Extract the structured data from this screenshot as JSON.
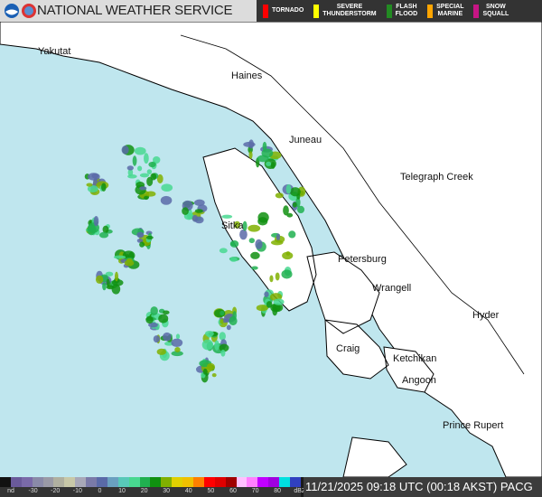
{
  "header": {
    "title": "NATIONAL WEATHER SERVICE",
    "logos": [
      "noaa-logo",
      "nws-logo"
    ]
  },
  "warnings_legend": [
    {
      "label": "TORNADO",
      "color": "#ff0000"
    },
    {
      "label": "SEVERE THUNDERSTORM",
      "color": "#ffff00"
    },
    {
      "label": "FLASH FLOOD",
      "color": "#228b22"
    },
    {
      "label": "SPECIAL MARINE",
      "color": "#ffa500"
    },
    {
      "label": "SNOW SQUALL",
      "color": "#c71585"
    }
  ],
  "map": {
    "colors": {
      "water": "#bfe6ee",
      "land": "#ffffff",
      "border": "#000000"
    },
    "places": [
      "Yakutat",
      "Haines",
      "Juneau",
      "Telegraph Creek",
      "Sitka",
      "Petersburg",
      "Wrangell",
      "Hyder",
      "Craig",
      "Ketchikan",
      "Angoon",
      "Prince Rupert"
    ]
  },
  "colorbar": {
    "unit": "dBZ",
    "ticks": [
      "nd",
      "-30",
      "-20",
      "-10",
      "0",
      "10",
      "20",
      "30",
      "40",
      "50",
      "60",
      "70",
      "80",
      "dBZ"
    ],
    "colors": [
      "#111111",
      "#6a5a9a",
      "#7a6aa8",
      "#8a8aa8",
      "#9a9aa6",
      "#b0b0a0",
      "#c8c8a8",
      "#a8a8b8",
      "#7a7aa8",
      "#5a6aa8",
      "#6aa0c0",
      "#58c8b8",
      "#48d890",
      "#20b050",
      "#109010",
      "#80b000",
      "#e0d000",
      "#f0c000",
      "#ff8000",
      "#ff0000",
      "#e00000",
      "#a00000",
      "#ffc0ff",
      "#ff80ff",
      "#c000ff",
      "#a000e0",
      "#00e0e0",
      "#3040c0"
    ]
  },
  "status": {
    "timestamp": "11/21/2025 09:18 UTC (00:18 AKST) PACG"
  }
}
